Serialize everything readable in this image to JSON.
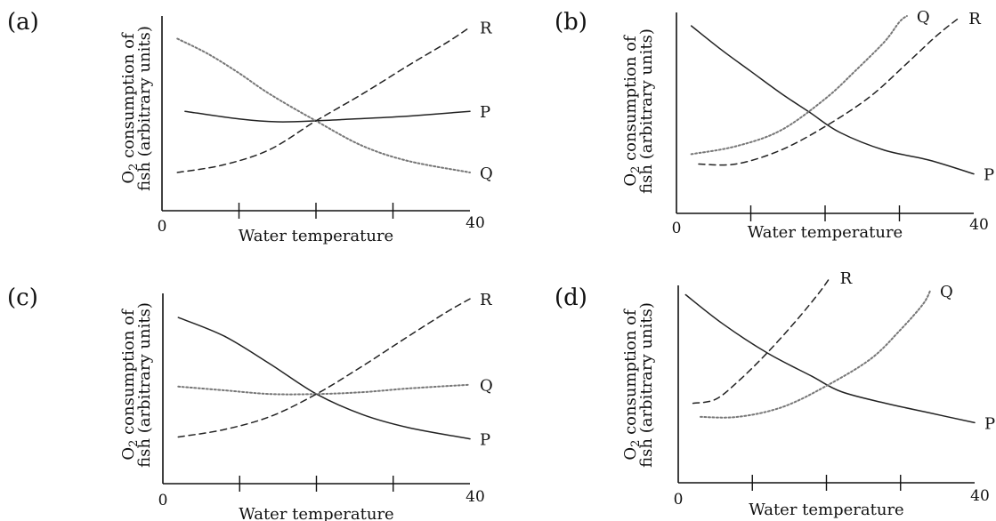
{
  "chart_data": [
    {
      "type": "line",
      "panel_label": "(a)",
      "ylabel_prefix": "O",
      "ylabel_sub": "2",
      "ylabel_line1_rest": " consumption of",
      "ylabel_line2": "fish (arbitrary units)",
      "xlabel": "Water temperature",
      "x_tick_labels": [
        "0",
        "40"
      ],
      "xlim": [
        0,
        40
      ],
      "x_ticks": [
        10,
        20,
        30
      ],
      "series": [
        {
          "name": "P",
          "style": "solid",
          "x": [
            3,
            10,
            15,
            20,
            25,
            32,
            40
          ],
          "y": [
            0.52,
            0.48,
            0.465,
            0.47,
            0.48,
            0.495,
            0.52
          ]
        },
        {
          "name": "Q",
          "style": "dotted",
          "x": [
            2,
            6,
            10,
            14,
            20,
            26,
            32,
            40
          ],
          "y": [
            0.9,
            0.82,
            0.72,
            0.61,
            0.47,
            0.34,
            0.26,
            0.2
          ]
        },
        {
          "name": "R",
          "style": "dashed",
          "x": [
            2,
            8,
            14,
            20,
            26,
            32,
            37,
            40
          ],
          "y": [
            0.2,
            0.24,
            0.32,
            0.47,
            0.61,
            0.76,
            0.88,
            0.96
          ]
        }
      ]
    },
    {
      "type": "line",
      "panel_label": "(b)",
      "ylabel_prefix": "O",
      "ylabel_sub": "2",
      "ylabel_line1_rest": " consumption of",
      "ylabel_line2": "fish (arbitrary units)",
      "xlabel": "Water temperature",
      "x_tick_labels": [
        "0",
        "40"
      ],
      "xlim": [
        0,
        40
      ],
      "x_ticks": [
        10,
        20,
        30
      ],
      "series": [
        {
          "name": "P",
          "style": "solid",
          "x": [
            2,
            6,
            10,
            14,
            18,
            22,
            28,
            34,
            40
          ],
          "y": [
            0.95,
            0.83,
            0.72,
            0.61,
            0.51,
            0.41,
            0.32,
            0.27,
            0.2
          ]
        },
        {
          "name": "Q",
          "style": "dotted",
          "x": [
            2,
            8,
            14,
            20,
            24,
            28,
            30,
            31
          ],
          "y": [
            0.3,
            0.34,
            0.42,
            0.58,
            0.72,
            0.87,
            0.97,
            1.0
          ]
        },
        {
          "name": "R",
          "style": "dashed",
          "x": [
            3,
            8,
            14,
            20,
            26,
            31,
            35,
            38
          ],
          "y": [
            0.25,
            0.25,
            0.32,
            0.44,
            0.59,
            0.76,
            0.9,
            0.99
          ]
        }
      ]
    },
    {
      "type": "line",
      "panel_label": "(c)",
      "ylabel_prefix": "O",
      "ylabel_sub": "2",
      "ylabel_line1_rest": " consumption of",
      "ylabel_line2": "fish (arbitrary units)",
      "xlabel": "Water temperature",
      "x_tick_labels": [
        "0",
        "40"
      ],
      "xlim": [
        0,
        40
      ],
      "x_ticks": [
        10,
        20,
        30
      ],
      "series": [
        {
          "name": "P",
          "style": "solid",
          "x": [
            2,
            8,
            14,
            20,
            26,
            32,
            40
          ],
          "y": [
            0.89,
            0.79,
            0.64,
            0.48,
            0.37,
            0.3,
            0.24
          ]
        },
        {
          "name": "Q",
          "style": "dotted",
          "x": [
            2,
            8,
            14,
            20,
            26,
            32,
            40
          ],
          "y": [
            0.52,
            0.5,
            0.48,
            0.48,
            0.49,
            0.51,
            0.53
          ]
        },
        {
          "name": "R",
          "style": "dashed",
          "x": [
            2,
            8,
            14,
            20,
            26,
            32,
            37,
            40
          ],
          "y": [
            0.25,
            0.29,
            0.36,
            0.48,
            0.63,
            0.79,
            0.92,
            0.99
          ]
        }
      ]
    },
    {
      "type": "line",
      "panel_label": "(d)",
      "ylabel_prefix": "O",
      "ylabel_sub": "2",
      "ylabel_line1_rest": " consumption of",
      "ylabel_line2": "fish (arbitrary units)",
      "xlabel": "Water temperature",
      "x_tick_labels": [
        "0",
        "40"
      ],
      "xlim": [
        0,
        40
      ],
      "x_ticks": [
        10,
        20,
        30
      ],
      "series": [
        {
          "name": "P",
          "style": "solid",
          "x": [
            1,
            6,
            12,
            18,
            22,
            28,
            34,
            40
          ],
          "y": [
            0.97,
            0.82,
            0.67,
            0.55,
            0.47,
            0.41,
            0.36,
            0.31
          ]
        },
        {
          "name": "Q",
          "style": "dotted",
          "x": [
            3,
            8,
            14,
            20,
            26,
            30,
            33,
            34
          ],
          "y": [
            0.34,
            0.34,
            0.39,
            0.5,
            0.64,
            0.79,
            0.92,
            0.99
          ]
        },
        {
          "name": "R",
          "style": "dashed",
          "x": [
            2,
            5,
            8,
            12,
            16,
            19,
            20.5
          ],
          "y": [
            0.41,
            0.43,
            0.52,
            0.67,
            0.84,
            0.98,
            1.06
          ]
        }
      ]
    }
  ]
}
